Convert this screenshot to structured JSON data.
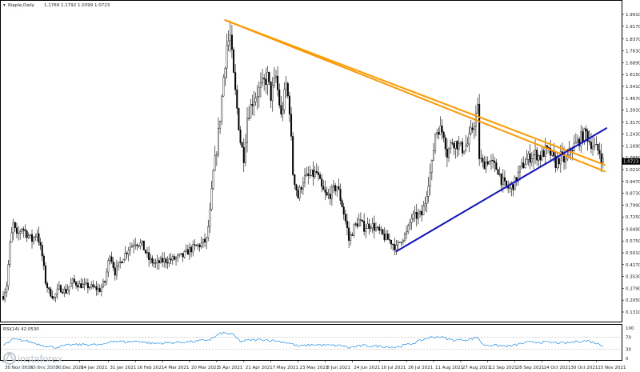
{
  "header": {
    "symbol": "Ripple,Daily",
    "ohlc": "1.1769 1.1792 1.0399 1.0723"
  },
  "rsi_label": "RSI(14) 42.0530",
  "watermark": {
    "brand": "instaforex",
    "tagline": "Instant Forex Trading"
  },
  "colors": {
    "candle": "#000000",
    "resistance": "#ff9900",
    "support": "#1010cc",
    "rsi_line": "#1e90ff",
    "rsi_levels": "#b0b0b0",
    "price_tag": "#000000"
  },
  "chart_data": [
    {
      "type": "candlestick",
      "title": "Ripple,Daily",
      "y_axis_ticks": [
        1.991,
        1.917,
        1.837,
        1.763,
        1.689,
        1.615,
        1.541,
        1.467,
        1.393,
        1.317,
        1.243,
        1.169,
        1.095,
        1.021,
        0.947,
        0.873,
        0.799,
        0.725,
        0.649,
        0.575,
        0.501,
        0.427,
        0.353,
        0.279,
        0.205,
        0.131
      ],
      "x_axis_ticks": [
        "30 Nov 2020",
        "15 Dec 2020",
        "30 Dec 2020",
        "14 Jan 2021",
        "31 Jan 2021",
        "16 Feb 2021",
        "4 Mar 2021",
        "20 Mar 2021",
        "5 Apr 2021",
        "21 Apr 2021",
        "7 May 2021",
        "23 May 2021",
        "8 Jun 2021",
        "24 Jun 2021",
        "10 Jul 2021",
        "26 Jul 2021",
        "11 Aug 2021",
        "27 Aug 2021",
        "12 Sep 2021",
        "28 Sep 2021",
        "14 Oct 2021",
        "30 Oct 2021",
        "15 Nov 2021"
      ],
      "current_price": 1.0723,
      "ylim": [
        0.131,
        2.035
      ],
      "trendlines": [
        {
          "color": "#ff9900",
          "from": [
            "10 Apr 2021",
            1.955
          ],
          "to": [
            "20 Nov 2021",
            1.05
          ]
        },
        {
          "color": "#ff9900",
          "from": [
            "10 Apr 2021",
            1.955
          ],
          "to": [
            "20 Nov 2021",
            1.01
          ]
        },
        {
          "color": "#1010cc",
          "from": [
            "20 Jul 2021",
            0.51
          ],
          "to": [
            "21 Nov 2021",
            1.28
          ]
        }
      ],
      "keypoints": [
        [
          "30 Nov 2020",
          0.23
        ],
        [
          "2 Dec 2020",
          0.3
        ],
        [
          "4 Dec 2020",
          0.55
        ],
        [
          "6 Dec 2020",
          0.68
        ],
        [
          "8 Dec 2020",
          0.6
        ],
        [
          "11 Dec 2020",
          0.66
        ],
        [
          "14 Dec 2020",
          0.62
        ],
        [
          "17 Dec 2020",
          0.58
        ],
        [
          "20 Dec 2020",
          0.63
        ],
        [
          "23 Dec 2020",
          0.48
        ],
        [
          "25 Dec 2020",
          0.32
        ],
        [
          "27 Dec 2020",
          0.26
        ],
        [
          "30 Dec 2020",
          0.22
        ],
        [
          "2 Jan 2021",
          0.28
        ],
        [
          "6 Jan 2021",
          0.26
        ],
        [
          "10 Jan 2021",
          0.32
        ],
        [
          "14 Jan 2021",
          0.3
        ],
        [
          "20 Jan 2021",
          0.29
        ],
        [
          "26 Jan 2021",
          0.27
        ],
        [
          "29 Jan 2021",
          0.32
        ],
        [
          "1 Feb 2021",
          0.5
        ],
        [
          "4 Feb 2021",
          0.38
        ],
        [
          "8 Feb 2021",
          0.46
        ],
        [
          "12 Feb 2021",
          0.53
        ],
        [
          "16 Feb 2021",
          0.57
        ],
        [
          "20 Feb 2021",
          0.55
        ],
        [
          "24 Feb 2021",
          0.46
        ],
        [
          "28 Feb 2021",
          0.43
        ],
        [
          "4 Mar 2021",
          0.45
        ],
        [
          "10 Mar 2021",
          0.46
        ],
        [
          "16 Mar 2021",
          0.48
        ],
        [
          "20 Mar 2021",
          0.52
        ],
        [
          "26 Mar 2021",
          0.55
        ],
        [
          "30 Mar 2021",
          0.58
        ],
        [
          "1 Apr 2021",
          0.75
        ],
        [
          "3 Apr 2021",
          1.0
        ],
        [
          "5 Apr 2021",
          1.15
        ],
        [
          "7 Apr 2021",
          1.35
        ],
        [
          "9 Apr 2021",
          1.6
        ],
        [
          "11 Apr 2021",
          1.8
        ],
        [
          "13 Apr 2021",
          1.85
        ],
        [
          "15 Apr 2021",
          1.6
        ],
        [
          "17 Apr 2021",
          1.4
        ],
        [
          "19 Apr 2021",
          1.2
        ],
        [
          "21 Apr 2021",
          1.1
        ],
        [
          "23 Apr 2021",
          1.35
        ],
        [
          "26 Apr 2021",
          1.45
        ],
        [
          "29 Apr 2021",
          1.5
        ],
        [
          "2 May 2021",
          1.55
        ],
        [
          "5 May 2021",
          1.6
        ],
        [
          "7 May 2021",
          1.48
        ],
        [
          "10 May 2021",
          1.6
        ],
        [
          "13 May 2021",
          1.35
        ],
        [
          "16 May 2021",
          1.55
        ],
        [
          "18 May 2021",
          1.4
        ],
        [
          "20 May 2021",
          1.0
        ],
        [
          "23 May 2021",
          0.85
        ],
        [
          "26 May 2021",
          0.96
        ],
        [
          "30 May 2021",
          0.98
        ],
        [
          "3 Jun 2021",
          1.0
        ],
        [
          "6 Jun 2021",
          0.9
        ],
        [
          "9 Jun 2021",
          0.85
        ],
        [
          "12 Jun 2021",
          0.88
        ],
        [
          "15 Jun 2021",
          0.92
        ],
        [
          "18 Jun 2021",
          0.8
        ],
        [
          "21 Jun 2021",
          0.65
        ],
        [
          "22 Jun 2021",
          0.58
        ],
        [
          "25 Jun 2021",
          0.66
        ],
        [
          "28 Jun 2021",
          0.7
        ],
        [
          "1 Jul 2021",
          0.66
        ],
        [
          "5 Jul 2021",
          0.68
        ],
        [
          "9 Jul 2021",
          0.64
        ],
        [
          "13 Jul 2021",
          0.6
        ],
        [
          "17 Jul 2021",
          0.57
        ],
        [
          "20 Jul 2021",
          0.53
        ],
        [
          "23 Jul 2021",
          0.59
        ],
        [
          "26 Jul 2021",
          0.62
        ],
        [
          "29 Jul 2021",
          0.72
        ],
        [
          "1 Aug 2021",
          0.73
        ],
        [
          "4 Aug 2021",
          0.74
        ],
        [
          "6 Aug 2021",
          0.82
        ],
        [
          "8 Aug 2021",
          0.95
        ],
        [
          "10 Aug 2021",
          1.05
        ],
        [
          "12 Aug 2021",
          1.25
        ],
        [
          "14 Aug 2021",
          1.28
        ],
        [
          "17 Aug 2021",
          1.25
        ],
        [
          "19 Aug 2021",
          1.12
        ],
        [
          "22 Aug 2021",
          1.2
        ],
        [
          "25 Aug 2021",
          1.18
        ],
        [
          "28 Aug 2021",
          1.15
        ],
        [
          "31 Aug 2021",
          1.18
        ],
        [
          "3 Sep 2021",
          1.28
        ],
        [
          "6 Sep 2021",
          1.4
        ],
        [
          "7 Sep 2021",
          1.1
        ],
        [
          "9 Sep 2021",
          1.05
        ],
        [
          "12 Sep 2021",
          1.08
        ],
        [
          "15 Sep 2021",
          1.05
        ],
        [
          "18 Sep 2021",
          1.02
        ],
        [
          "20 Sep 2021",
          0.96
        ],
        [
          "22 Sep 2021",
          0.92
        ],
        [
          "25 Sep 2021",
          0.9
        ],
        [
          "28 Sep 2021",
          0.94
        ],
        [
          "1 Oct 2021",
          1.02
        ],
        [
          "4 Oct 2021",
          1.07
        ],
        [
          "7 Oct 2021",
          1.1
        ],
        [
          "10 Oct 2021",
          1.12
        ],
        [
          "13 Oct 2021",
          1.1
        ],
        [
          "16 Oct 2021",
          1.14
        ],
        [
          "19 Oct 2021",
          1.12
        ],
        [
          "22 Oct 2021",
          1.06
        ],
        [
          "25 Oct 2021",
          1.1
        ],
        [
          "28 Oct 2021",
          1.07
        ],
        [
          "31 Oct 2021",
          1.15
        ],
        [
          "3 Nov 2021",
          1.18
        ],
        [
          "6 Nov 2021",
          1.22
        ],
        [
          "9 Nov 2021",
          1.25
        ],
        [
          "11 Nov 2021",
          1.2
        ],
        [
          "14 Nov 2021",
          1.16
        ],
        [
          "17 Nov 2021",
          1.13
        ],
        [
          "19 Nov 2021",
          1.0723
        ]
      ]
    },
    {
      "type": "line",
      "title": "RSI(14) 42.0530",
      "ylim": [
        0,
        100
      ],
      "y_axis_ticks": [
        100,
        70,
        30,
        0
      ],
      "levels": [
        70,
        30
      ],
      "last_value": 42.053,
      "keypoints": [
        [
          "30 Nov 2020",
          42
        ],
        [
          "6 Dec 2020",
          63
        ],
        [
          "14 Dec 2020",
          57
        ],
        [
          "22 Dec 2020",
          45
        ],
        [
          "30 Dec 2020",
          36
        ],
        [
          "8 Jan 2021",
          44
        ],
        [
          "18 Jan 2021",
          46
        ],
        [
          "28 Jan 2021",
          44
        ],
        [
          "2 Feb 2021",
          58
        ],
        [
          "10 Feb 2021",
          54
        ],
        [
          "18 Feb 2021",
          57
        ],
        [
          "26 Feb 2021",
          49
        ],
        [
          "6 Mar 2021",
          51
        ],
        [
          "14 Mar 2021",
          53
        ],
        [
          "24 Mar 2021",
          56
        ],
        [
          "1 Apr 2021",
          62
        ],
        [
          "8 Apr 2021",
          84
        ],
        [
          "14 Apr 2021",
          80
        ],
        [
          "19 Apr 2021",
          56
        ],
        [
          "24 Apr 2021",
          60
        ],
        [
          "2 May 2021",
          62
        ],
        [
          "10 May 2021",
          58
        ],
        [
          "18 May 2021",
          50
        ],
        [
          "23 May 2021",
          40
        ],
        [
          "1 Jun 2021",
          45
        ],
        [
          "10 Jun 2021",
          43
        ],
        [
          "18 Jun 2021",
          42
        ],
        [
          "22 Jun 2021",
          35
        ],
        [
          "30 Jun 2021",
          42
        ],
        [
          "10 Jul 2021",
          40
        ],
        [
          "20 Jul 2021",
          37
        ],
        [
          "30 Jul 2021",
          50
        ],
        [
          "8 Aug 2021",
          68
        ],
        [
          "14 Aug 2021",
          72
        ],
        [
          "22 Aug 2021",
          60
        ],
        [
          "1 Sep 2021",
          62
        ],
        [
          "6 Sep 2021",
          70
        ],
        [
          "9 Sep 2021",
          45
        ],
        [
          "18 Sep 2021",
          42
        ],
        [
          "25 Sep 2021",
          40
        ],
        [
          "4 Oct 2021",
          52
        ],
        [
          "12 Oct 2021",
          54
        ],
        [
          "20 Oct 2021",
          52
        ],
        [
          "28 Oct 2021",
          50
        ],
        [
          "4 Nov 2021",
          56
        ],
        [
          "10 Nov 2021",
          58
        ],
        [
          "15 Nov 2021",
          50
        ],
        [
          "19 Nov 2021",
          42
        ]
      ]
    }
  ]
}
